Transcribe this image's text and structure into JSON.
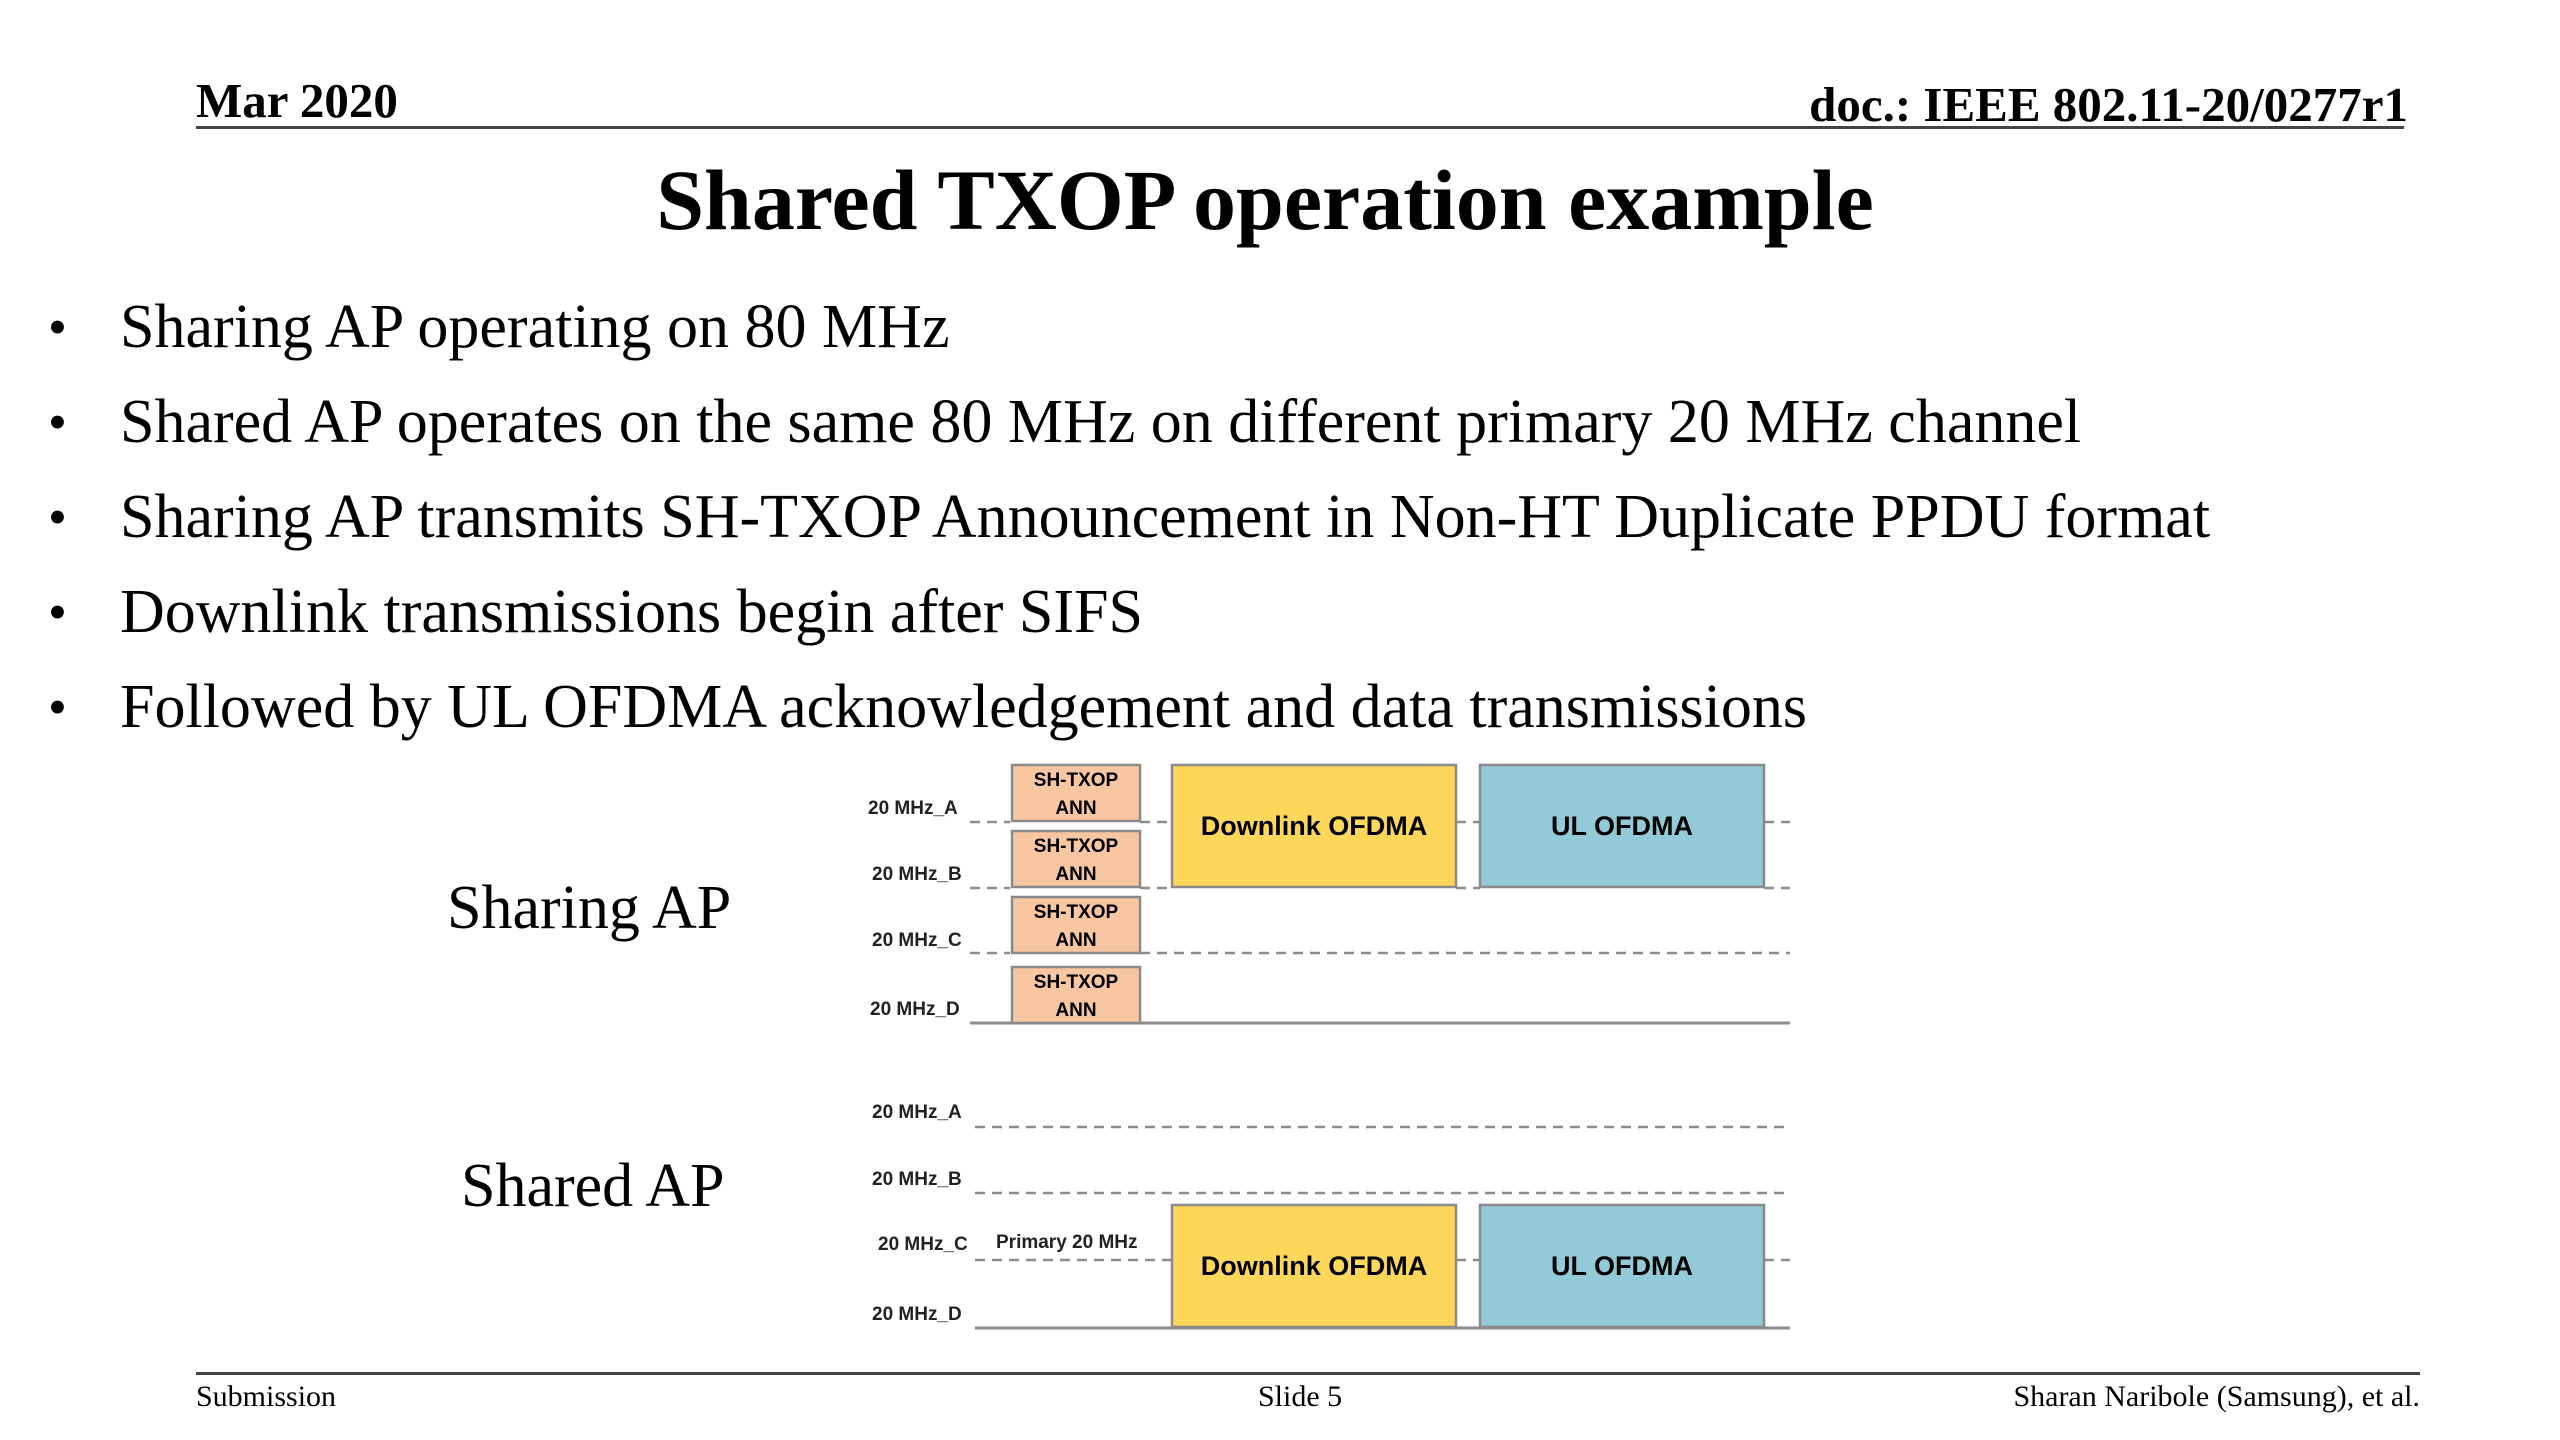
{
  "header": {
    "date": "Mar 2020",
    "doc_id": "doc.: IEEE 802.11-20/0277r1"
  },
  "title": "Shared TXOP operation example",
  "bullets": [
    "Sharing AP operating on 80 MHz",
    "Shared AP operates on the same 80 MHz on different primary 20 MHz channel",
    "Sharing AP transmits SH-TXOP Announcement in Non-HT Duplicate PPDU format",
    "Downlink transmissions begin after SIFS",
    "Followed by UL OFDMA acknowledgement and data transmissions"
  ],
  "bullet_symbol": "•",
  "diagram": {
    "sharing_ap": {
      "label": "Sharing AP",
      "channels": [
        "20 MHz_A",
        "20 MHz_B",
        "20 MHz_C",
        "20 MHz_D"
      ],
      "ann_line1": "SH-TXOP",
      "ann_line2": "ANN",
      "downlink_label": "Downlink OFDMA",
      "ul_label": "UL OFDMA"
    },
    "shared_ap": {
      "label": "Shared AP",
      "channels": [
        "20 MHz_A",
        "20 MHz_B",
        "20 MHz_C",
        "20 MHz_D"
      ],
      "primary_label": "Primary 20 MHz",
      "downlink_label": "Downlink OFDMA",
      "ul_label": "UL OFDMA"
    },
    "colors": {
      "ann_fill": "#f8c6a0",
      "downlink_fill": "#fcd75a",
      "ul_fill": "#92cad8",
      "box_stroke": "#8a8a8a",
      "line": "#8c8c8c"
    }
  },
  "footer": {
    "left": "Submission",
    "center": "Slide 5",
    "right": "Sharan Naribole (Samsung), et al."
  }
}
